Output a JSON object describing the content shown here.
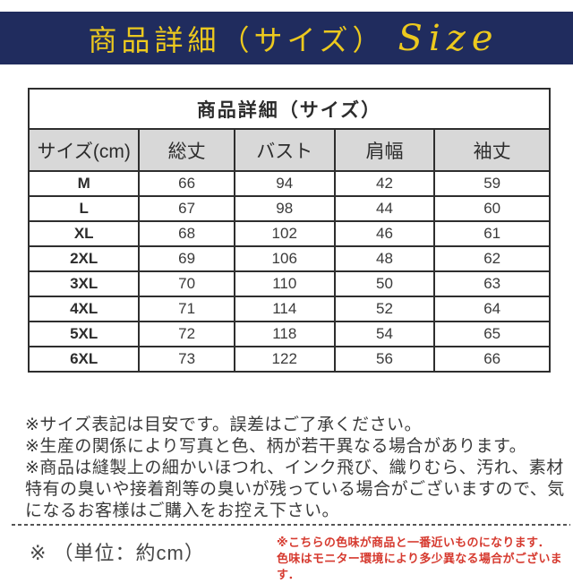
{
  "banner": {
    "title": "商品詳細（サイズ）",
    "subtitle": "Size"
  },
  "table": {
    "caption": "商品詳細（サイズ）",
    "columns": [
      "サイズ(cm)",
      "総丈",
      "バスト",
      "肩幅",
      "袖丈"
    ],
    "rows": [
      [
        "M",
        "66",
        "94",
        "42",
        "59"
      ],
      [
        "L",
        "67",
        "98",
        "44",
        "60"
      ],
      [
        "XL",
        "68",
        "102",
        "46",
        "61"
      ],
      [
        "2XL",
        "69",
        "106",
        "48",
        "62"
      ],
      [
        "3XL",
        "70",
        "110",
        "50",
        "63"
      ],
      [
        "4XL",
        "71",
        "114",
        "52",
        "64"
      ],
      [
        "5XL",
        "72",
        "118",
        "54",
        "65"
      ],
      [
        "6XL",
        "73",
        "122",
        "56",
        "66"
      ]
    ]
  },
  "notes": {
    "items": [
      "※サイズ表記は目安です。誤差はご了承ください。",
      "※生産の関係により写真と色、柄が若干異なる場合があります。",
      "※商品は縫製上の細かいほつれ、インク飛び、織りむら、汚れ、素材特有の臭いや接着剤等の臭いが残っている場合がございますので、気になるお客様はご購入をお控え下さい。"
    ]
  },
  "footer": {
    "unit_note": "※ （単位：約cm）",
    "color_note_lines": [
      "※こちらの色味が商品と一番近いものになります．",
      "色味はモニター環境により多少異なる場合がございます．"
    ]
  },
  "colors": {
    "banner_bg": "#202c5e",
    "banner_text": "#ecc91e",
    "table_header_bg": "#d8d8d8",
    "table_border": "#2e2e2e",
    "note_red": "#d63a2f"
  }
}
